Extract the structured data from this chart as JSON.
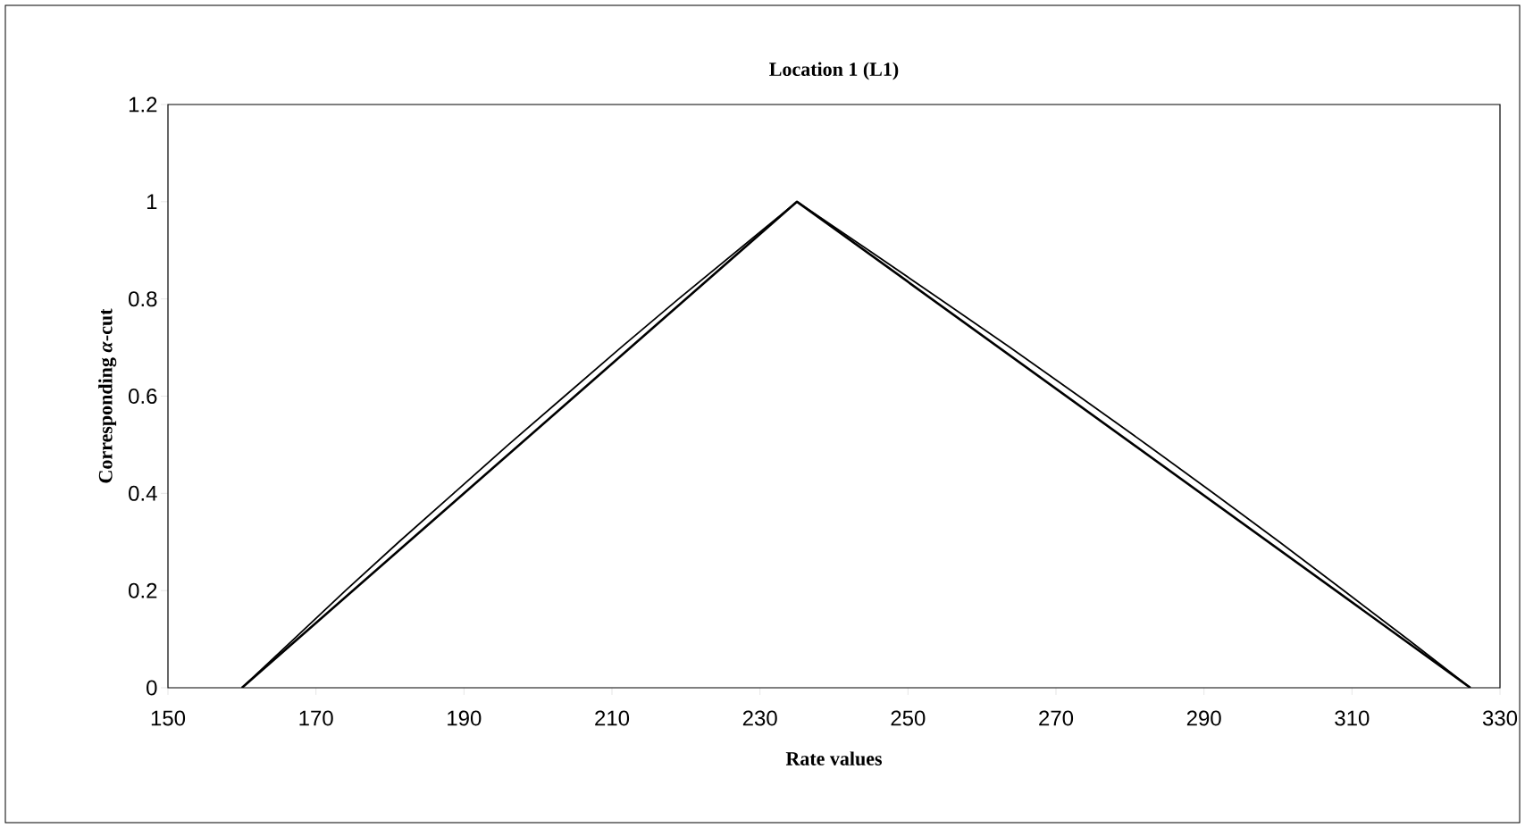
{
  "chart_data": {
    "type": "line",
    "title": "Location 1 (L1)",
    "xlabel": "Rate values",
    "ylabel": "Corresponding *α*-cut",
    "series": [
      {
        "color": "#000000",
        "x": [
          160,
          235,
          326
        ],
        "values": [
          0,
          1,
          0
        ]
      },
      {
        "color": "#000000",
        "x": [
          160,
          167.0,
          174.0,
          181.2,
          188.6,
          196.0,
          203.6,
          211.2,
          219.0,
          227.0,
          235,
          244.7,
          254.3,
          263.8,
          273.1,
          282.3,
          291.3,
          300.2,
          308.9,
          317.5,
          326
        ],
        "values": [
          0,
          0.1,
          0.2,
          0.3,
          0.4,
          0.5,
          0.6,
          0.7,
          0.8,
          0.9,
          1,
          0.9,
          0.8,
          0.7,
          0.6,
          0.5,
          0.4,
          0.3,
          0.2,
          0.1,
          0
        ]
      }
    ],
    "xlim": [
      150,
      330
    ],
    "xticks": [
      150,
      170,
      190,
      210,
      230,
      250,
      270,
      290,
      310,
      330
    ],
    "ylim": [
      0,
      1.2
    ],
    "yticks": [
      0,
      0.2,
      0.4,
      0.6,
      0.8,
      1,
      1.2
    ],
    "grid": false,
    "marker": "none",
    "line_style": "solid"
  }
}
